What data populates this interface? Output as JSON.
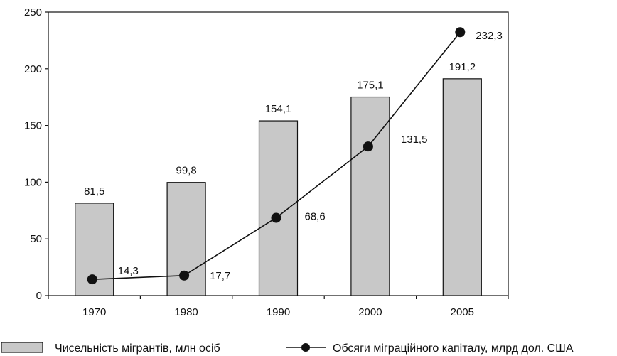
{
  "chart_data": {
    "type": "bar",
    "categories": [
      "1970",
      "1980",
      "1990",
      "2000",
      "2005"
    ],
    "series": [
      {
        "name": "Чисельність мігрантів, млн осіб",
        "type": "bar",
        "values": [
          81.5,
          99.8,
          154.1,
          175.1,
          191.2
        ],
        "labels": [
          "81,5",
          "99,8",
          "154,1",
          "175,1",
          "191,2"
        ],
        "color": "#c8c8c8"
      },
      {
        "name": "Обсяги міграційного капіталу, млрд дол. США",
        "type": "line",
        "values": [
          14.3,
          17.7,
          68.6,
          131.5,
          232.3
        ],
        "labels": [
          "14,3",
          "17,7",
          "68,6",
          "131,5",
          "232,3"
        ],
        "color": "#111111"
      }
    ],
    "yticks": [
      0,
      50,
      100,
      150,
      200,
      250
    ],
    "ylim": [
      0,
      250
    ],
    "grid": false,
    "legend_position": "bottom"
  }
}
